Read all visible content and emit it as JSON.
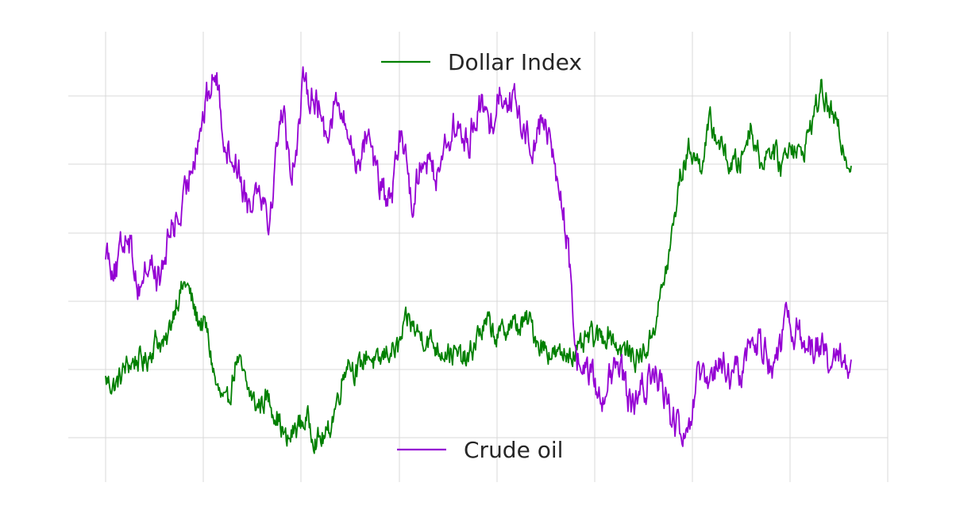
{
  "chart_data": {
    "type": "line",
    "title": "",
    "xlabel": "",
    "ylabel": "",
    "grid": true,
    "axis_tick_labels_visible": false,
    "series": [
      {
        "name": "Dollar Index",
        "color": "#008000",
        "axis": "left",
        "legend_position": "upper-center",
        "values": [
          -0.8,
          -0.95,
          -0.45,
          -0.25,
          -0.3,
          0.3,
          0.1,
          1.35,
          1.8,
          0.9,
          0.55,
          -1.0,
          -1.6,
          -0.2,
          -1.0,
          -1.5,
          -1.25,
          -1.7,
          -2.5,
          -2.0,
          -1.85,
          -2.4,
          -2.3,
          -1.3,
          -0.2,
          -0.6,
          -0.05,
          -0.45,
          0.0,
          0.0,
          0.8,
          0.45,
          0.3,
          0.05,
          0.0,
          -0.2,
          -0.3,
          0.45,
          0.7,
          0.3,
          0.7,
          0.6,
          0.8,
          0.2,
          0.0,
          -0.2,
          0.0,
          -0.1,
          0.35,
          0.3,
          0.5,
          0.05,
          -0.1,
          -0.2,
          0.2,
          1.3,
          2.6,
          4.6,
          5.4,
          4.9,
          6.0,
          5.5,
          4.9,
          5.0,
          6.0,
          5.0,
          5.4,
          4.9,
          5.6,
          5.1,
          6.0,
          6.9,
          6.3,
          5.6,
          4.9
        ]
      },
      {
        "name": "Crude oil",
        "color": "#9400D3",
        "axis": "right",
        "legend_position": "lower-center",
        "values": [
          1.2,
          0.7,
          1.6,
          0.4,
          0.9,
          0.5,
          1.6,
          1.8,
          3.0,
          3.8,
          4.6,
          3.1,
          2.8,
          2.0,
          2.5,
          1.7,
          4.0,
          2.6,
          4.2,
          4.2,
          3.4,
          4.0,
          3.4,
          2.8,
          3.5,
          2.3,
          2.0,
          3.5,
          2.0,
          3.1,
          2.5,
          3.2,
          3.5,
          3.1,
          4.0,
          3.5,
          4.2,
          4.1,
          3.5,
          3.2,
          3.7,
          2.7,
          1.5,
          -1.0,
          -1.2,
          -1.7,
          -1.4,
          -1.2,
          -2.0,
          -1.6,
          -1.2,
          -1.7,
          -2.3,
          -2.7,
          -1.4,
          -1.6,
          -1.0,
          -1.4,
          -1.2,
          -0.6,
          -0.7,
          -1.2,
          -0.4,
          -0.4,
          -0.8,
          -0.6,
          -1.2,
          -1.0,
          -1.0
        ]
      }
    ],
    "ylim_left": [
      -3,
      8
    ],
    "ylim_right": [
      -3,
      5
    ],
    "vertical_gridline_count": 9,
    "horizontal_gridline_count": 6
  }
}
